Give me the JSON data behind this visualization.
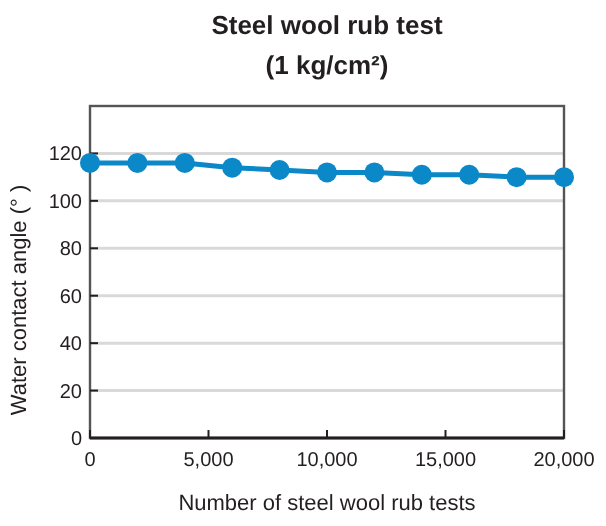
{
  "chart_data": {
    "type": "line",
    "title": "Steel wool rub test",
    "subtitle": "(1 kg/cm²)",
    "xlabel": "Number of steel wool rub tests",
    "ylabel": "Water contact angle (° )",
    "x": [
      0,
      2000,
      4000,
      6000,
      8000,
      10000,
      12000,
      14000,
      16000,
      18000,
      20000
    ],
    "series": [
      {
        "color": "#0a88c8",
        "values": [
          116,
          116,
          116,
          114,
          113,
          112,
          112,
          111,
          111,
          110,
          110
        ]
      }
    ],
    "xlim": [
      0,
      20000
    ],
    "xticks": [
      0,
      {
        "value": 5000,
        "label": "5,000"
      },
      {
        "value": 10000,
        "label": "10,000"
      },
      {
        "value": 15000,
        "label": "15,000"
      },
      {
        "value": 20000,
        "label": "20,000"
      }
    ],
    "ylim": [
      0,
      140
    ],
    "yticks": [
      0,
      20,
      40,
      60,
      80,
      100,
      120
    ],
    "grid": "y",
    "marker": "circle",
    "line_style": "solid"
  }
}
